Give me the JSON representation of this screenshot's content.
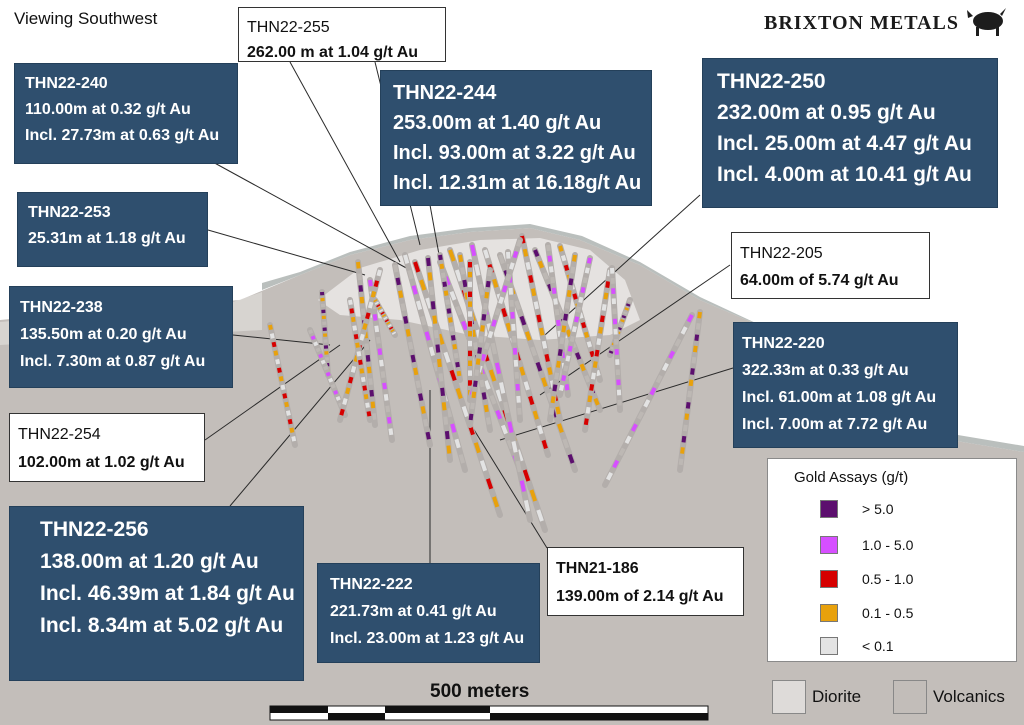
{
  "header": {
    "view_label": "Viewing Southwest",
    "logo_text": "BRIXTON METALS"
  },
  "callouts": [
    {
      "id": "THN22-255",
      "style": "light",
      "lines": [
        "THN22-255",
        "262.00 m at 1.04 g/t Au"
      ]
    },
    {
      "id": "THN22-240",
      "style": "dark",
      "lines": [
        "THN22-240",
        "110.00m at  0.32 g/t Au",
        "Incl. 27.73m at 0.63 g/t Au"
      ]
    },
    {
      "id": "THN22-244",
      "style": "dark",
      "lines": [
        "THN22-244",
        "253.00m at 1.40 g/t Au",
        "Incl. 93.00m at 3.22 g/t Au",
        "Incl. 12.31m at 16.18g/t Au"
      ]
    },
    {
      "id": "THN22-250",
      "style": "dark",
      "lines": [
        "THN22-250",
        "232.00m at 0.95 g/t Au",
        "Incl. 25.00m at 4.47 g/t Au",
        "Incl. 4.00m at 10.41 g/t Au"
      ]
    },
    {
      "id": "THN22-253",
      "style": "dark",
      "lines": [
        "THN22-253",
        "25.31m at 1.18 g/t Au"
      ]
    },
    {
      "id": "THN22-205",
      "style": "light",
      "lines": [
        "THN22-205",
        "64.00m of 5.74 g/t Au"
      ]
    },
    {
      "id": "THN22-238",
      "style": "dark",
      "lines": [
        "THN22-238",
        "135.50m at 0.20 g/t Au",
        "Incl. 7.30m at 0.87 g/t Au"
      ]
    },
    {
      "id": "THN22-220",
      "style": "dark",
      "lines": [
        "THN22-220",
        "322.33m at 0.33 g/t Au",
        "Incl. 61.00m at 1.08 g/t Au",
        "Incl. 7.00m at 7.72 g/t Au"
      ]
    },
    {
      "id": "THN22-254",
      "style": "light",
      "lines": [
        "THN22-254",
        "102.00m at 1.02 g/t Au"
      ]
    },
    {
      "id": "THN22-256",
      "style": "dark",
      "lines": [
        "THN22-256",
        "138.00m at 1.20 g/t Au",
        "Incl. 46.39m at 1.84 g/t Au",
        "Incl. 8.34m at 5.02 g/t Au"
      ]
    },
    {
      "id": "THN22-222",
      "style": "dark",
      "lines": [
        "THN22-222",
        "221.73m at 0.41 g/t Au",
        "Incl. 23.00m at 1.23 g/t Au"
      ]
    },
    {
      "id": "THN21-186",
      "style": "light",
      "lines": [
        "THN21-186",
        "139.00m of 2.14 g/t Au"
      ]
    }
  ],
  "legend": {
    "title": "Gold Assays (g/t)",
    "items": [
      {
        "label": "> 5.0",
        "color": "#5c0f6e"
      },
      {
        "label": "1.0 - 5.0",
        "color": "#d64fff"
      },
      {
        "label": "0.5 - 1.0",
        "color": "#d60000"
      },
      {
        "label": "0.1 - 0.5",
        "color": "#e8a10c"
      },
      {
        "label": "< 0.1",
        "color": "#e3e3e3"
      }
    ]
  },
  "rock_legend": [
    {
      "label": "Diorite",
      "color": "#dedbd9"
    },
    {
      "label": "Volcanics",
      "color": "#c2bdb9"
    }
  ],
  "scale_bar": {
    "label": "500 meters"
  },
  "colors": {
    "dark_box": "#2f4f6e",
    "volcanics": "#c2bdb9",
    "diorite": "#e4e1df",
    "overburden": "#b8bebc"
  }
}
